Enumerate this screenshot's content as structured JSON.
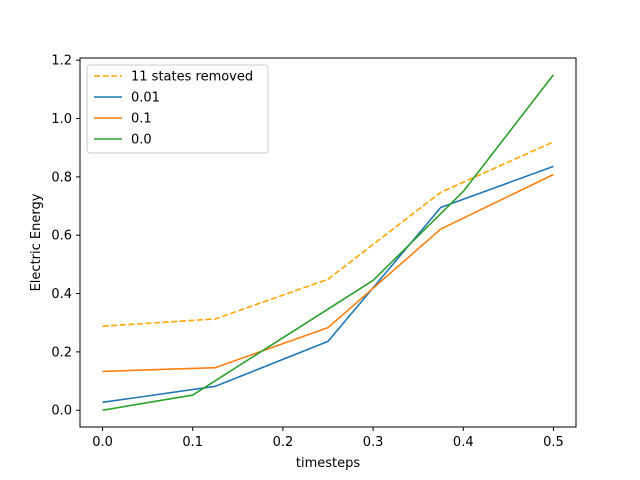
{
  "chart_data": {
    "type": "line",
    "title": "",
    "xlabel": "timesteps",
    "ylabel": "Electric Energy",
    "xlim": [
      -0.025,
      0.525
    ],
    "ylim": [
      -0.0575,
      1.2075
    ],
    "xticks": [
      0.0,
      0.1,
      0.2,
      0.3,
      0.4,
      0.5
    ],
    "xtick_labels": [
      "0.0",
      "0.1",
      "0.2",
      "0.3",
      "0.4",
      "0.5"
    ],
    "yticks": [
      0.0,
      0.2,
      0.4,
      0.6,
      0.8,
      1.0,
      1.2
    ],
    "ytick_labels": [
      "0.0",
      "0.2",
      "0.4",
      "0.6",
      "0.8",
      "1.0",
      "1.2"
    ],
    "grid": false,
    "legend_position": "top-left",
    "series": [
      {
        "name": "11 states removed",
        "color": "#ffa500",
        "dashed": true,
        "x": [
          0.0,
          0.125,
          0.25,
          0.375,
          0.5
        ],
        "y": [
          0.288,
          0.313,
          0.449,
          0.747,
          0.92
        ]
      },
      {
        "name": "0.01",
        "color": "#1f77b4",
        "dashed": false,
        "x": [
          0.0,
          0.125,
          0.25,
          0.375,
          0.5
        ],
        "y": [
          0.027,
          0.082,
          0.236,
          0.695,
          0.836
        ]
      },
      {
        "name": "0.1",
        "color": "#ff7f0e",
        "dashed": false,
        "x": [
          0.0,
          0.125,
          0.25,
          0.375,
          0.5
        ],
        "y": [
          0.133,
          0.146,
          0.283,
          0.621,
          0.808
        ]
      },
      {
        "name": "0.0",
        "color": "#2ca02c",
        "dashed": false,
        "x": [
          0.0,
          0.1,
          0.3,
          0.4,
          0.5
        ],
        "y": [
          0.0,
          0.052,
          0.445,
          0.75,
          1.15
        ]
      }
    ]
  }
}
